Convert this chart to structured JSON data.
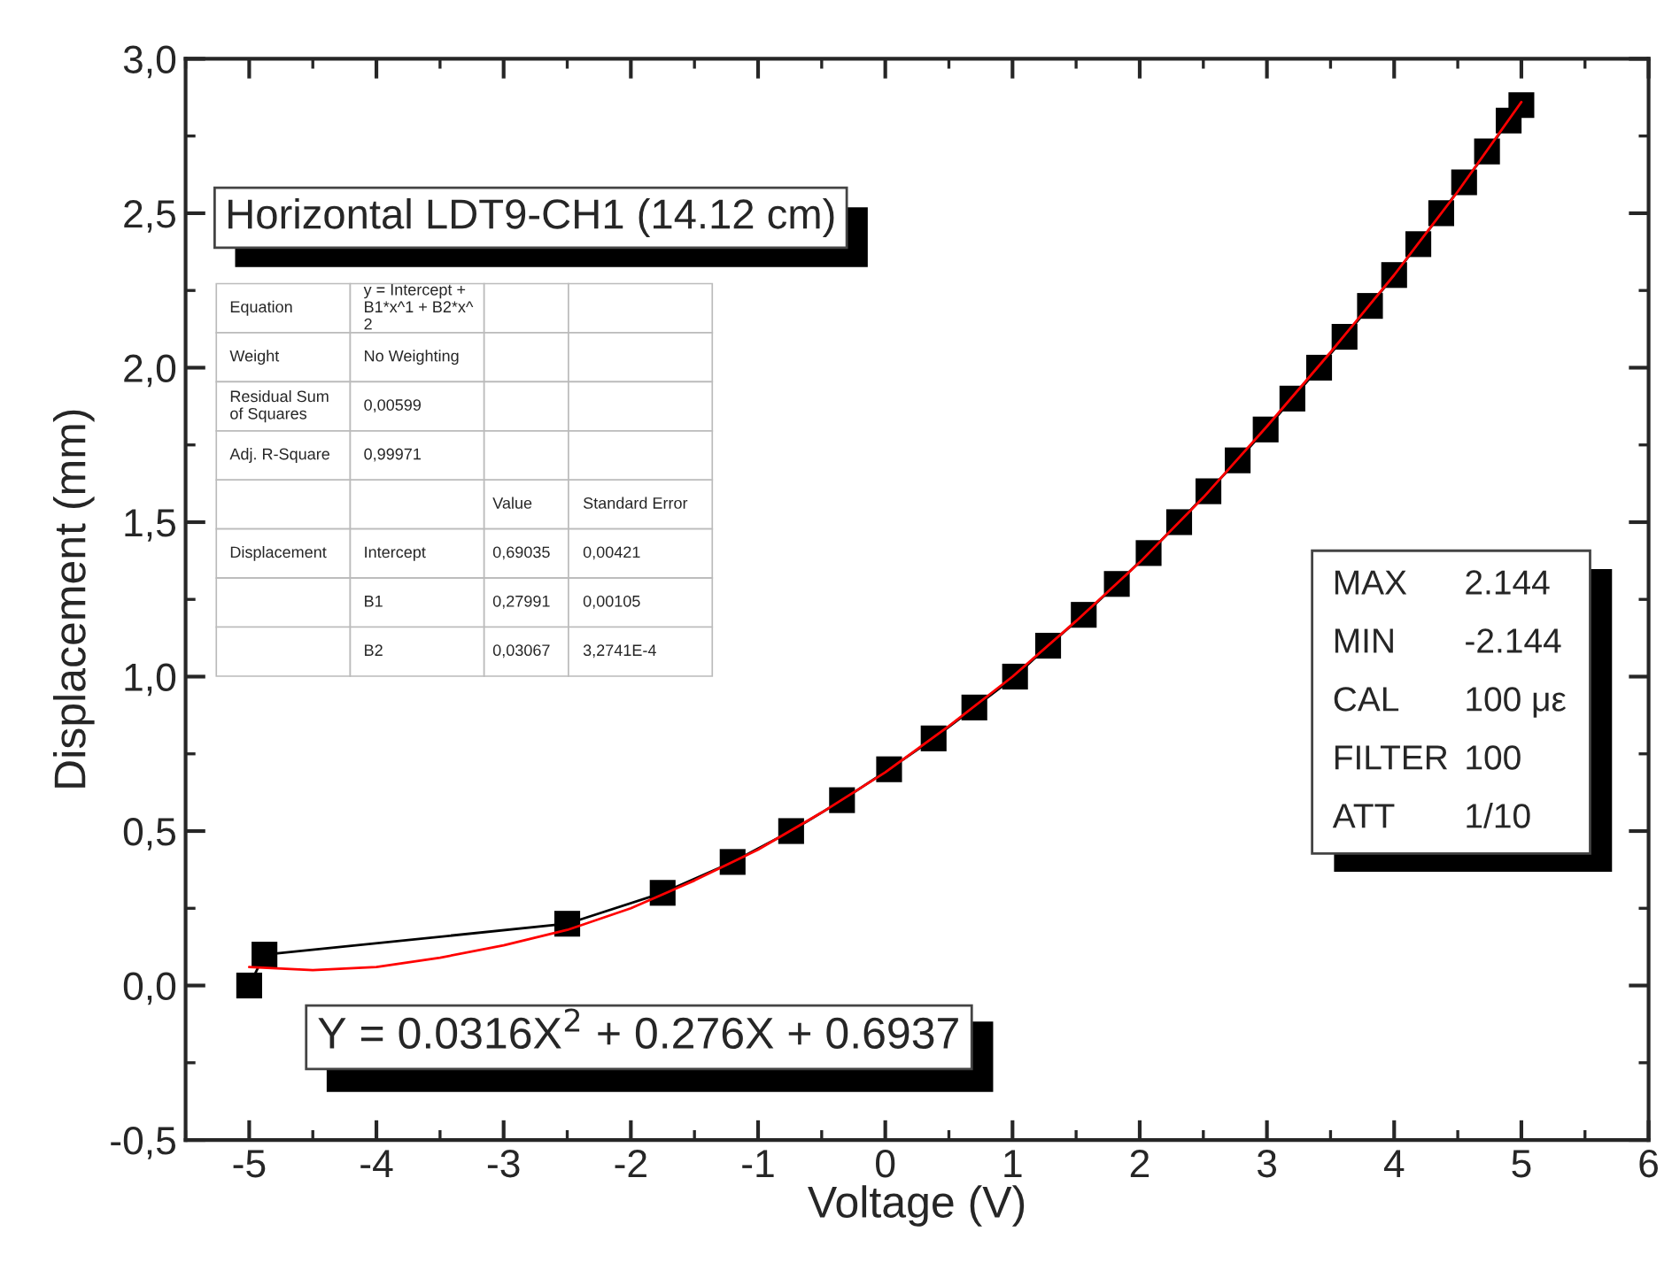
{
  "chart_data": {
    "type": "line",
    "xlabel": "Voltage (V)",
    "ylabel": "Displacement (mm)",
    "xlim": [
      -5.5,
      6
    ],
    "xticks": [
      -5,
      -4,
      -3,
      -2,
      -1,
      0,
      1,
      2,
      3,
      4,
      5,
      6
    ],
    "ylim": [
      -0.5,
      3.0
    ],
    "yticks": [
      {
        "value": -0.5,
        "label": "-0,5"
      },
      {
        "value": 0.0,
        "label": "0,0"
      },
      {
        "value": 0.5,
        "label": "0,5"
      },
      {
        "value": 1.0,
        "label": "1,0"
      },
      {
        "value": 1.5,
        "label": "1,5"
      },
      {
        "value": 2.0,
        "label": "2,0"
      },
      {
        "value": 2.5,
        "label": "2,5"
      },
      {
        "value": 3.0,
        "label": "3,0"
      }
    ],
    "grid": false,
    "legend": false,
    "series": [
      {
        "color": "#000000",
        "marker": "square",
        "line_style": "solid",
        "x": [
          -5.0,
          -4.88,
          -2.5,
          -1.75,
          -1.2,
          -0.74,
          -0.34,
          0.03,
          0.38,
          0.7,
          1.02,
          1.28,
          1.56,
          1.82,
          2.07,
          2.31,
          2.54,
          2.77,
          2.99,
          3.2,
          3.41,
          3.61,
          3.81,
          4.0,
          4.19,
          4.37,
          4.55,
          4.73,
          4.9,
          5.0
        ],
        "values": [
          0.0,
          0.1,
          0.2,
          0.3,
          0.4,
          0.5,
          0.6,
          0.7,
          0.8,
          0.9,
          1.0,
          1.1,
          1.2,
          1.3,
          1.4,
          1.5,
          1.6,
          1.7,
          1.8,
          1.9,
          2.0,
          2.1,
          2.2,
          2.3,
          2.4,
          2.5,
          2.6,
          2.7,
          2.8,
          2.85
        ]
      },
      {
        "color": "#ff0000",
        "marker": "none",
        "line_style": "solid",
        "x": [
          -5.0,
          -4.5,
          -4.0,
          -3.5,
          -3.0,
          -2.5,
          -2.0,
          -1.5,
          -1.0,
          -0.5,
          0.0,
          0.5,
          1.0,
          1.5,
          2.0,
          2.5,
          3.0,
          3.5,
          4.0,
          4.5,
          5.0
        ],
        "values": [
          0.06,
          0.05,
          0.06,
          0.09,
          0.13,
          0.18,
          0.25,
          0.34,
          0.44,
          0.56,
          0.69,
          0.84,
          1.0,
          1.18,
          1.37,
          1.58,
          1.81,
          2.05,
          2.3,
          2.57,
          2.86
        ]
      }
    ],
    "annotations": [
      "Horizontal LDT9-CH1 (14.12 cm)",
      "Equation\ty = Intercept +\nB1*x^1 + B2*x^\n2\t\t\nWeight\tNo Weighting\t\t\nResidual Sum\nof Squares\t0,00599\t\t\nAdj. R-Square\t0,99971\t\t\n\t\tValue\tStandard Error\nDisplacement\tIntercept\t0,69035\t0,00421\n\tB1\t0,27991\t0,00105\n\tB2\t0,03067\t3,2741E-4",
      "MAX\t2.144\nMIN\t-2.144\nCAL\t100 με\nFILTER\t100\nATT\t1/10",
      "Y = 0.0316X$^{2}$ + 0.276X + 0.6937"
    ]
  }
}
